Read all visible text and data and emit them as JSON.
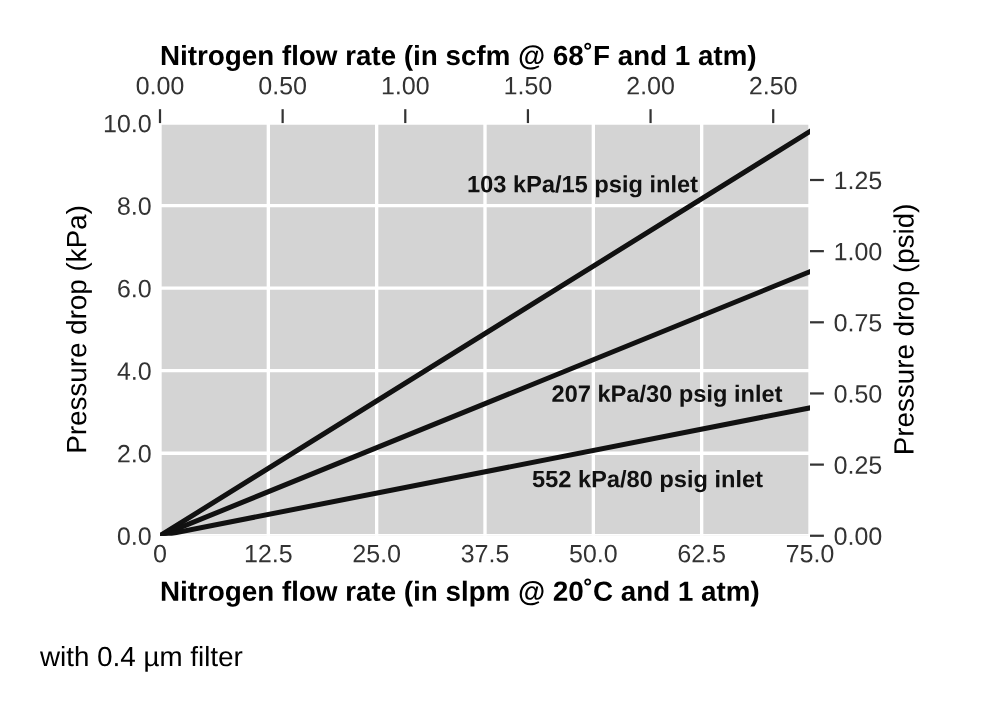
{
  "chart_data": {
    "type": "line",
    "xlabel": "Nitrogen flow rate (in slpm @ 20˚C and 1 atm)",
    "ylabel": "Pressure drop (kPa)",
    "x2label": "Nitrogen flow rate (in scfm @ 68˚F and 1 atm)",
    "y2label": "Pressure drop (psid)",
    "x": [
      0,
      75
    ],
    "series": [
      {
        "name": "103 kPa/15 psig inlet",
        "color": "#111111",
        "values": [
          0,
          9.8
        ]
      },
      {
        "name": "207 kPa/30 psig inlet",
        "color": "#111111",
        "values": [
          0,
          6.4
        ]
      },
      {
        "name": "552 kPa/80 psig inlet",
        "color": "#111111",
        "values": [
          0,
          3.1
        ]
      }
    ],
    "xlim": [
      0,
      75
    ],
    "xticks": [
      {
        "value": 0,
        "label": "0"
      },
      12.5,
      {
        "value": 25,
        "label": "25.0"
      },
      37.5,
      {
        "value": 50,
        "label": "50.0"
      },
      62.5,
      {
        "value": 75,
        "label": "75.0"
      }
    ],
    "ylim": [
      0,
      10
    ],
    "yticks": [
      {
        "value": 0,
        "label": "0.0"
      },
      {
        "value": 2,
        "label": "2.0"
      },
      {
        "value": 4,
        "label": "4.0"
      },
      {
        "value": 6,
        "label": "6.0"
      },
      {
        "value": 8,
        "label": "8.0"
      },
      {
        "value": 10,
        "label": "10.0"
      }
    ],
    "x2lim": [
      0,
      2.65
    ],
    "x2ticks": [
      {
        "value": 0,
        "label": "0.00"
      },
      {
        "value": 0.5,
        "label": "0.50"
      },
      {
        "value": 1,
        "label": "1.00"
      },
      {
        "value": 1.5,
        "label": "1.50"
      },
      {
        "value": 2,
        "label": "2.00"
      },
      {
        "value": 2.5,
        "label": "2.50"
      }
    ],
    "y2lim": [
      0,
      1.45
    ],
    "y2ticks": [
      {
        "value": 0,
        "label": "0.00"
      },
      0.25,
      {
        "value": 0.5,
        "label": "0.50"
      },
      0.75,
      {
        "value": 1,
        "label": "1.00"
      },
      1.25
    ],
    "grid": true,
    "line_style": "solid",
    "marker": "none",
    "annotations": [
      "with 0.4 µm filter"
    ]
  }
}
